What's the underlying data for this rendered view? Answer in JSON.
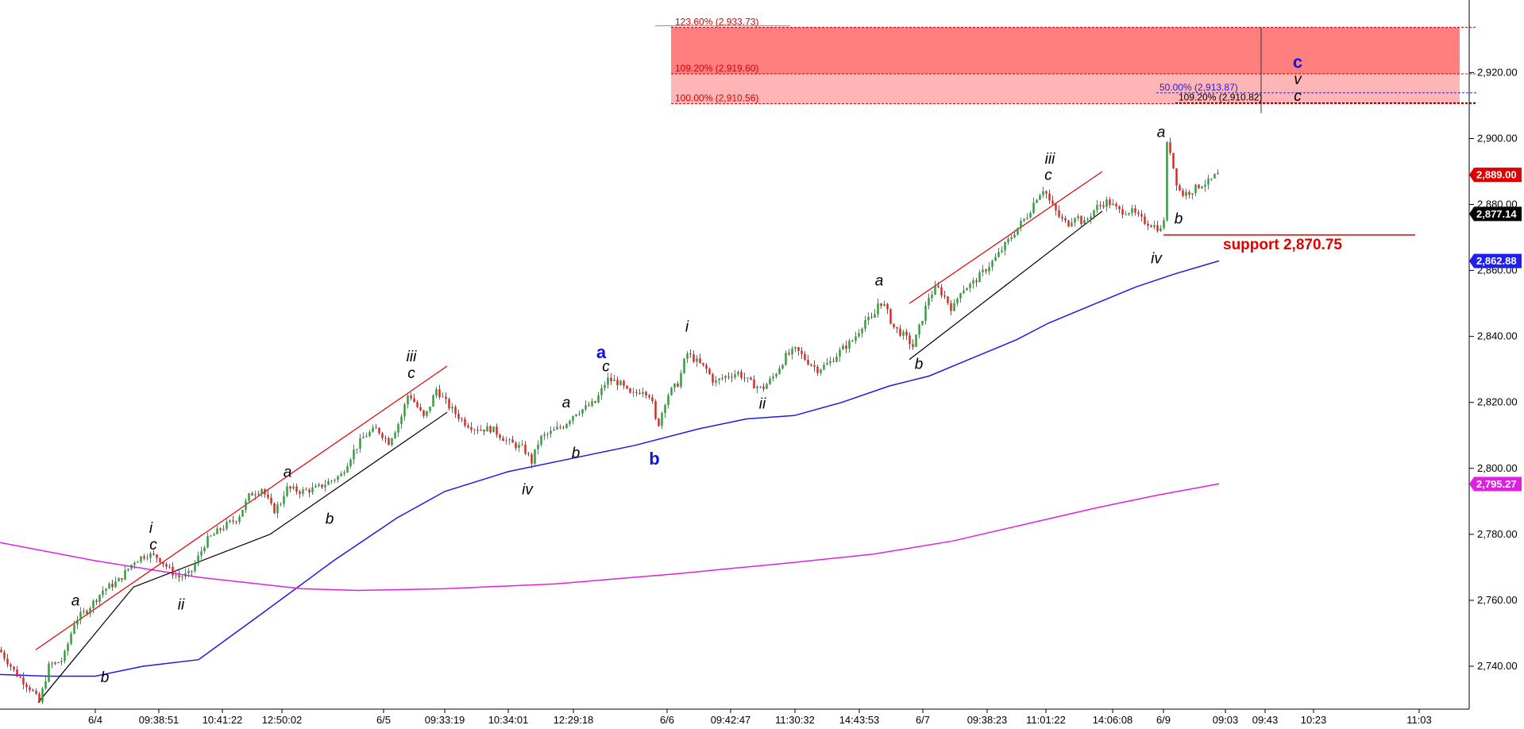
{
  "chart_data": {
    "type": "candlestick",
    "title": "",
    "xlabel": "",
    "ylabel": "",
    "ylim": [
      2727,
      2942
    ],
    "y_ticks": [
      2740,
      2760,
      2780,
      2800,
      2820,
      2840,
      2860,
      2880,
      2900,
      2920
    ],
    "y_tick_labels": [
      "2,740.00",
      "2,760.00",
      "2,780.00",
      "2,800.00",
      "2,820.00",
      "2,840.00",
      "2,860.00",
      "2,880.00",
      "2,900.00",
      "2,920.00"
    ],
    "x_range": [
      0,
      1850
    ],
    "x_ticks": [
      {
        "i": 120,
        "label": "6/4"
      },
      {
        "i": 200,
        "label": "09:38:51"
      },
      {
        "i": 280,
        "label": "10:41:22"
      },
      {
        "i": 355,
        "label": "12:50:02"
      },
      {
        "i": 483,
        "label": "6/5"
      },
      {
        "i": 560,
        "label": "09:33:19"
      },
      {
        "i": 640,
        "label": "10:34:01"
      },
      {
        "i": 722,
        "label": "12:29:18"
      },
      {
        "i": 840,
        "label": "6/6"
      },
      {
        "i": 920,
        "label": "09:42:47"
      },
      {
        "i": 1001,
        "label": "11:30:32"
      },
      {
        "i": 1082,
        "label": "14:43:53"
      },
      {
        "i": 1162,
        "label": "6/7"
      },
      {
        "i": 1243,
        "label": "09:38:23"
      },
      {
        "i": 1317,
        "label": "11:01:22"
      },
      {
        "i": 1401,
        "label": "14:06:08"
      },
      {
        "i": 1465,
        "label": "6/9"
      },
      {
        "i": 1543,
        "label": "09:03"
      },
      {
        "i": 1593,
        "label": "09:43"
      },
      {
        "i": 1654,
        "label": "10:23"
      },
      {
        "i": 1787,
        "label": "11:03"
      }
    ],
    "price_path": [
      [
        0,
        2745
      ],
      [
        20,
        2738
      ],
      [
        40,
        2733
      ],
      [
        50,
        2729
      ],
      [
        62,
        2740
      ],
      [
        80,
        2742
      ],
      [
        95,
        2754
      ],
      [
        110,
        2757
      ],
      [
        130,
        2763
      ],
      [
        150,
        2766
      ],
      [
        170,
        2772
      ],
      [
        185,
        2774
      ],
      [
        200,
        2773
      ],
      [
        215,
        2769
      ],
      [
        225,
        2767
      ],
      [
        240,
        2768
      ],
      [
        260,
        2778
      ],
      [
        280,
        2782
      ],
      [
        300,
        2785
      ],
      [
        315,
        2792
      ],
      [
        330,
        2794
      ],
      [
        345,
        2787
      ],
      [
        355,
        2790
      ],
      [
        360,
        2794
      ],
      [
        380,
        2793
      ],
      [
        400,
        2794
      ],
      [
        415,
        2796
      ],
      [
        430,
        2798
      ],
      [
        445,
        2805
      ],
      [
        460,
        2810
      ],
      [
        475,
        2812
      ],
      [
        490,
        2808
      ],
      [
        505,
        2815
      ],
      [
        515,
        2823
      ],
      [
        525,
        2819
      ],
      [
        535,
        2815
      ],
      [
        550,
        2824
      ],
      [
        565,
        2819
      ],
      [
        585,
        2814
      ],
      [
        600,
        2812
      ],
      [
        620,
        2812
      ],
      [
        640,
        2808
      ],
      [
        660,
        2806
      ],
      [
        670,
        2802
      ],
      [
        680,
        2809
      ],
      [
        695,
        2811
      ],
      [
        710,
        2813
      ],
      [
        725,
        2817
      ],
      [
        735,
        2818
      ],
      [
        750,
        2820
      ],
      [
        765,
        2827
      ],
      [
        780,
        2826
      ],
      [
        795,
        2822
      ],
      [
        810,
        2824
      ],
      [
        820,
        2822
      ],
      [
        828,
        2812
      ],
      [
        840,
        2822
      ],
      [
        855,
        2826
      ],
      [
        865,
        2835
      ],
      [
        875,
        2833
      ],
      [
        890,
        2830
      ],
      [
        900,
        2826
      ],
      [
        915,
        2828
      ],
      [
        930,
        2829
      ],
      [
        945,
        2826
      ],
      [
        960,
        2824
      ],
      [
        975,
        2828
      ],
      [
        990,
        2834
      ],
      [
        1003,
        2836
      ],
      [
        1015,
        2833
      ],
      [
        1030,
        2830
      ],
      [
        1045,
        2832
      ],
      [
        1060,
        2836
      ],
      [
        1075,
        2839
      ],
      [
        1090,
        2845
      ],
      [
        1100,
        2845
      ],
      [
        1107,
        2851
      ],
      [
        1115,
        2849
      ],
      [
        1125,
        2843
      ],
      [
        1140,
        2840
      ],
      [
        1150,
        2837
      ],
      [
        1160,
        2844
      ],
      [
        1170,
        2852
      ],
      [
        1180,
        2855
      ],
      [
        1190,
        2852
      ],
      [
        1200,
        2848
      ],
      [
        1210,
        2854
      ],
      [
        1225,
        2856
      ],
      [
        1240,
        2860
      ],
      [
        1255,
        2864
      ],
      [
        1270,
        2869
      ],
      [
        1285,
        2874
      ],
      [
        1295,
        2877
      ],
      [
        1305,
        2882
      ],
      [
        1315,
        2885
      ],
      [
        1322,
        2881
      ],
      [
        1335,
        2876
      ],
      [
        1345,
        2874
      ],
      [
        1355,
        2877
      ],
      [
        1365,
        2874
      ],
      [
        1380,
        2879
      ],
      [
        1395,
        2881
      ],
      [
        1410,
        2878
      ],
      [
        1425,
        2878
      ],
      [
        1440,
        2875
      ],
      [
        1450,
        2874
      ],
      [
        1458,
        2873
      ],
      [
        1463,
        2872
      ],
      [
        1467,
        2877
      ],
      [
        1470,
        2898
      ],
      [
        1475,
        2896
      ],
      [
        1480,
        2888
      ],
      [
        1488,
        2883
      ],
      [
        1500,
        2884
      ],
      [
        1512,
        2886
      ],
      [
        1524,
        2887
      ],
      [
        1532,
        2889
      ],
      [
        1535,
        2889
      ]
    ],
    "series": [
      {
        "color": "#1a1aee",
        "points": [
          [
            0,
            2737.5
          ],
          [
            60,
            2737
          ],
          [
            120,
            2737
          ],
          [
            180,
            2740
          ],
          [
            250,
            2742
          ],
          [
            330,
            2756
          ],
          [
            420,
            2772
          ],
          [
            500,
            2785
          ],
          [
            560,
            2793
          ],
          [
            640,
            2799
          ],
          [
            720,
            2803
          ],
          [
            800,
            2807
          ],
          [
            880,
            2812
          ],
          [
            940,
            2815
          ],
          [
            1000,
            2816
          ],
          [
            1060,
            2820
          ],
          [
            1120,
            2825
          ],
          [
            1170,
            2828
          ],
          [
            1220,
            2833
          ],
          [
            1280,
            2839
          ],
          [
            1320,
            2844
          ],
          [
            1380,
            2850
          ],
          [
            1430,
            2855
          ],
          [
            1480,
            2859
          ],
          [
            1535,
            2862.9
          ]
        ]
      },
      {
        "color": "#e020e0",
        "points": [
          [
            0,
            2777.5
          ],
          [
            120,
            2772
          ],
          [
            250,
            2767
          ],
          [
            380,
            2763.5
          ],
          [
            450,
            2763
          ],
          [
            560,
            2763.5
          ],
          [
            700,
            2765
          ],
          [
            850,
            2768
          ],
          [
            1000,
            2771.5
          ],
          [
            1100,
            2774
          ],
          [
            1200,
            2778
          ],
          [
            1290,
            2783
          ],
          [
            1380,
            2788
          ],
          [
            1460,
            2792
          ],
          [
            1535,
            2795.3
          ]
        ]
      }
    ],
    "channels": [
      {
        "color": "#e00000",
        "from": [
          45,
          2745
        ],
        "to": [
          340,
          2794
        ]
      },
      {
        "color": "#e00000",
        "from": [
          340,
          2794
        ],
        "to": [
          563,
          2831
        ]
      },
      {
        "color": "#000000",
        "from": [
          48,
          2729
        ],
        "to": [
          168,
          2764
        ]
      },
      {
        "color": "#000000",
        "from": [
          168,
          2764
        ],
        "to": [
          340,
          2780
        ]
      },
      {
        "color": "#000000",
        "from": [
          340,
          2780
        ],
        "to": [
          563,
          2817
        ]
      },
      {
        "color": "#e00000",
        "from": [
          1145,
          2850
        ],
        "to": [
          1388,
          2890
        ]
      },
      {
        "color": "#000000",
        "from": [
          1145,
          2833
        ],
        "to": [
          1388,
          2878
        ]
      }
    ],
    "fib_zone": {
      "levels": [
        {
          "label": "123.60% (2,933.73)",
          "value": 2933.73,
          "color": "#d40000"
        },
        {
          "label": "109.20% (2,919.60)",
          "value": 2919.6,
          "color": "#d40000"
        },
        {
          "label": "100.00% (2,910.56)",
          "value": 2910.56,
          "color": "#d40000"
        }
      ],
      "extra_levels": [
        {
          "label": "50.00% (2,913.87)",
          "value": 2913.87,
          "color": "#2020dd"
        },
        {
          "label": "109.20% (2,910.82)",
          "value": 2910.82,
          "color": "#000000"
        }
      ],
      "x_start": 845,
      "x_end": 1838,
      "upper_color": "#ff7f7f",
      "lower_color": "#ffb5b5"
    },
    "support": {
      "label": "support 2,870.75",
      "value": 2870.75,
      "x_start": 1465,
      "x_end": 1782,
      "color": "#e00000"
    },
    "price_tags": [
      {
        "label": "2,889.00",
        "value": 2889.0,
        "color": "#e00000"
      },
      {
        "label": "2,877.14",
        "value": 2877.14,
        "color": "#000000"
      },
      {
        "label": "2,862.88",
        "value": 2862.88,
        "color": "#2020ee"
      },
      {
        "label": "2,795.27",
        "value": 2795.27,
        "color": "#e020e0"
      }
    ],
    "wave_labels": [
      {
        "text": "a",
        "i": 95,
        "v": 2757,
        "pos": "above",
        "style": "black"
      },
      {
        "text": "b",
        "i": 132,
        "v": 2740,
        "pos": "below",
        "style": "black"
      },
      {
        "text": "i",
        "i": 190,
        "v": 2779,
        "pos": "above",
        "style": "black"
      },
      {
        "text": "c",
        "i": 193,
        "v": 2774,
        "pos": "above",
        "style": "black"
      },
      {
        "text": "ii",
        "i": 228,
        "v": 2762,
        "pos": "below",
        "style": "black"
      },
      {
        "text": "a",
        "i": 362,
        "v": 2796,
        "pos": "above",
        "style": "black"
      },
      {
        "text": "b",
        "i": 415,
        "v": 2788,
        "pos": "below",
        "style": "black"
      },
      {
        "text": "iii",
        "i": 518,
        "v": 2831,
        "pos": "above",
        "style": "black"
      },
      {
        "text": "c",
        "i": 518,
        "v": 2826,
        "pos": "above",
        "style": "black"
      },
      {
        "text": "iv",
        "i": 664,
        "v": 2797,
        "pos": "below",
        "style": "black"
      },
      {
        "text": "a",
        "i": 713,
        "v": 2817,
        "pos": "above",
        "style": "black"
      },
      {
        "text": "b",
        "i": 725,
        "v": 2808,
        "pos": "below",
        "style": "black"
      },
      {
        "text": "a",
        "i": 757,
        "v": 2832,
        "pos": "above",
        "style": "blue"
      },
      {
        "text": "c",
        "i": 763,
        "v": 2828,
        "pos": "above",
        "style": "black"
      },
      {
        "text": "b",
        "i": 824,
        "v": 2806,
        "pos": "below",
        "style": "blue"
      },
      {
        "text": "i",
        "i": 865,
        "v": 2840,
        "pos": "above",
        "style": "black"
      },
      {
        "text": "ii",
        "i": 960,
        "v": 2823,
        "pos": "below",
        "style": "black"
      },
      {
        "text": "a",
        "i": 1107,
        "v": 2854,
        "pos": "above",
        "style": "black"
      },
      {
        "text": "b",
        "i": 1157,
        "v": 2835,
        "pos": "below",
        "style": "black"
      },
      {
        "text": "iii",
        "i": 1322,
        "v": 2891,
        "pos": "above",
        "style": "black"
      },
      {
        "text": "c",
        "i": 1320,
        "v": 2886,
        "pos": "above",
        "style": "black"
      },
      {
        "text": "iv",
        "i": 1456,
        "v": 2867,
        "pos": "below",
        "style": "black"
      },
      {
        "text": "a",
        "i": 1462,
        "v": 2899,
        "pos": "above",
        "style": "black"
      },
      {
        "text": "b",
        "i": 1484,
        "v": 2879,
        "pos": "below",
        "style": "black"
      },
      {
        "text": "c",
        "i": 1634,
        "v": 2920,
        "pos": "above",
        "style": "blue"
      },
      {
        "text": "v",
        "i": 1634,
        "v": 2915,
        "pos": "above",
        "style": "black"
      },
      {
        "text": "c",
        "i": 1634,
        "v": 2910,
        "pos": "above",
        "style": "black"
      }
    ]
  }
}
